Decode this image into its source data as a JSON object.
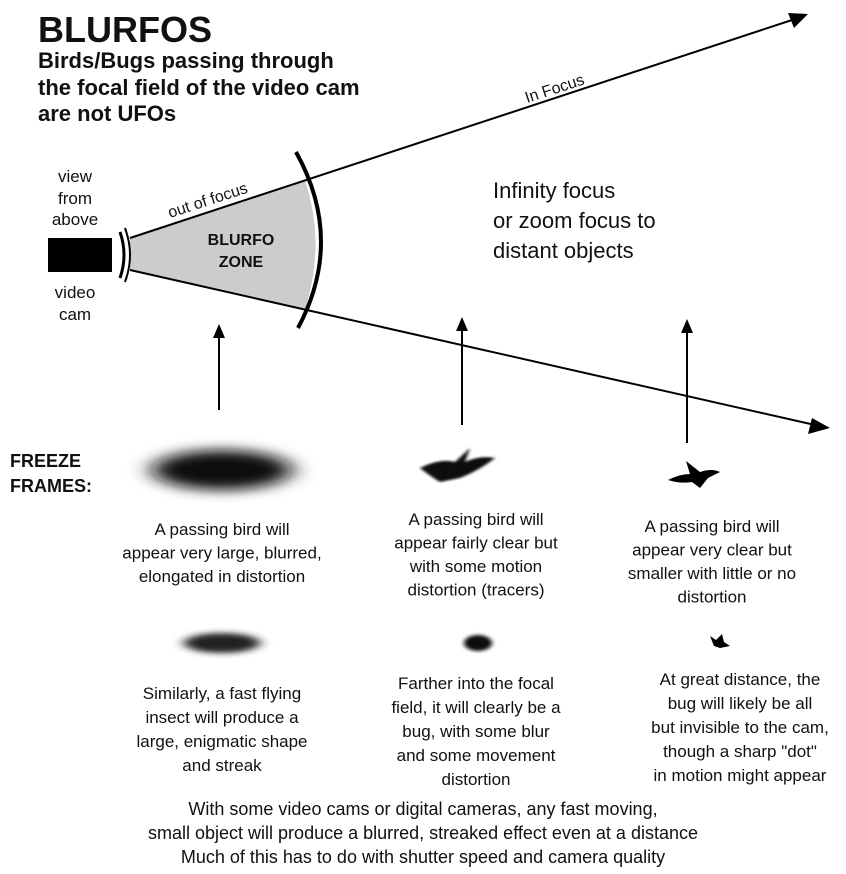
{
  "title": "BLURFOS",
  "subtitle": [
    "Birds/Bugs passing through",
    "the focal field of the video cam",
    "are not UFOs"
  ],
  "camera": {
    "view_label": [
      "view",
      "from",
      "above"
    ],
    "cam_label": [
      "video",
      "cam"
    ]
  },
  "labels": {
    "in_focus": "In Focus",
    "out_of_focus": "out of focus",
    "zone": [
      "BLURFO",
      "ZONE"
    ],
    "infinity": [
      "Infinity focus",
      "or zoom focus to",
      "distant objects"
    ]
  },
  "freeze_frames": [
    "FREEZE",
    "FRAMES:"
  ],
  "columns": [
    {
      "bird_caption": [
        "A passing bird will",
        "appear very large, blurred,",
        "elongated in distortion"
      ],
      "bug_caption": [
        "Similarly, a fast flying",
        "insect will produce a",
        "large, enigmatic shape",
        "and streak"
      ]
    },
    {
      "bird_caption": [
        "A passing bird will",
        "appear fairly clear but",
        "with some motion",
        "distortion (tracers)"
      ],
      "bug_caption": [
        "Farther into the focal",
        "field, it will clearly be a",
        "bug, with some blur",
        "and some movement",
        "distortion"
      ]
    },
    {
      "bird_caption": [
        "A passing bird will",
        "appear very clear but",
        "smaller with little or no",
        "distortion"
      ],
      "bug_caption": [
        "At great distance, the",
        "bug will likely be all",
        "but invisible to the cam,",
        "though a sharp \"dot\"",
        "in motion might appear"
      ]
    }
  ],
  "footer": [
    "With some video cams or digital cameras, any fast moving,",
    "small object will produce a blurred, streaked effect even at a distance",
    "Much of this has to do with shutter speed and camera quality"
  ]
}
